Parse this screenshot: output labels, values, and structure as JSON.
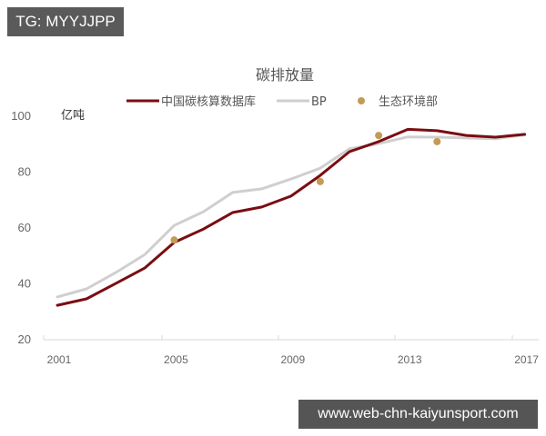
{
  "overlay": {
    "top_tag": "TG: MYYJJPP",
    "watermark": "www.web-chn-kaiyunsport.com"
  },
  "colors": {
    "series_china": "#7a0d12",
    "series_bp": "#cfcfcf",
    "series_mee": "#c49a55",
    "axis": "#d9d9d9",
    "tag_bg": "#5a5a5a"
  },
  "chart_data": {
    "type": "line",
    "title": "碳排放量",
    "ylabel": "亿吨",
    "xlabel": "",
    "ylim": [
      20,
      100
    ],
    "yticks": [
      20,
      40,
      60,
      80,
      100
    ],
    "xtick_labels": [
      "2001",
      "2005",
      "2009",
      "2013",
      "2017"
    ],
    "legend_position": "top",
    "grid": false,
    "x": [
      2001,
      2002,
      2003,
      2004,
      2005,
      2006,
      2007,
      2008,
      2009,
      2010,
      2011,
      2012,
      2013,
      2014,
      2015,
      2016,
      2017
    ],
    "series": [
      {
        "name": "中国碳核算数据库",
        "kind": "line",
        "values": [
          32.0,
          34.3,
          39.8,
          45.4,
          54.5,
          59.3,
          65.2,
          67.2,
          71.1,
          78.5,
          87.0,
          90.6,
          95.0,
          94.5,
          92.8,
          92.2,
          93.2
        ]
      },
      {
        "name": "BP",
        "kind": "line",
        "values": [
          35.0,
          37.9,
          43.7,
          50.2,
          60.6,
          65.5,
          72.4,
          73.7,
          77.2,
          81.1,
          88.0,
          89.9,
          92.3,
          92.2,
          91.9,
          91.6,
          93.0
        ]
      },
      {
        "name": "生态环境部",
        "kind": "scatter",
        "points": [
          {
            "x": 2005,
            "y": 55.4
          },
          {
            "x": 2010,
            "y": 76.3
          },
          {
            "x": 2012,
            "y": 92.8
          },
          {
            "x": 2014,
            "y": 90.6
          }
        ]
      }
    ]
  }
}
